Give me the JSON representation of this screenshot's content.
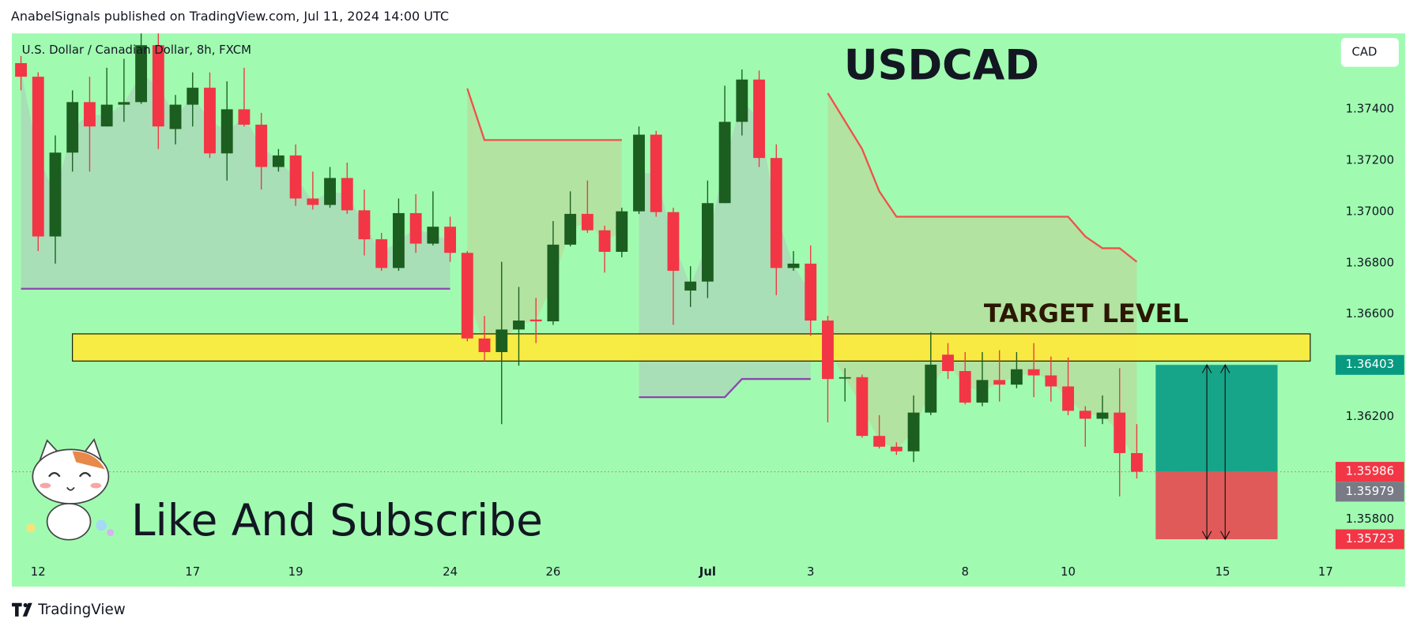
{
  "header": "AnabelSignals published on TradingView.com, Jul 11, 2024 14:00 UTC",
  "footer": "TradingView",
  "chart_data": {
    "type": "candlestick",
    "title": "USDCAD",
    "subtitle": "U.S. Dollar / Canadian Dollar, 8h, FXCM",
    "currency": "CAD",
    "annotations": [
      "TARGET LEVEL",
      "Like And Subscribe"
    ],
    "x": [
      -1,
      0,
      1,
      2,
      3,
      4,
      5,
      6,
      7,
      8,
      9,
      10,
      11,
      12,
      13,
      14,
      15,
      16,
      17,
      18,
      19,
      20,
      21,
      22,
      23,
      24,
      25,
      26,
      27,
      28,
      29,
      30,
      31,
      32,
      33,
      34,
      35,
      36,
      37,
      38,
      39,
      40,
      41,
      42,
      43,
      44,
      45,
      46,
      47,
      48,
      49,
      50,
      51,
      52,
      53,
      54,
      55,
      56,
      57,
      58,
      59,
      60,
      61,
      62,
      63,
      64
    ],
    "open": [
      1.3758,
      1.37527,
      1.36904,
      1.37231,
      1.37428,
      1.37333,
      1.37418,
      1.37428,
      1.3765,
      1.37323,
      1.37418,
      1.37484,
      1.37228,
      1.374,
      1.3734,
      1.37175,
      1.3722,
      1.37052,
      1.37027,
      1.37132,
      1.37006,
      1.36893,
      1.36781,
      1.36995,
      1.36876,
      1.36942,
      1.3684,
      1.36506,
      1.36453,
      1.36541,
      1.3658,
      1.36573,
      1.36872,
      1.36992,
      1.36928,
      1.36844,
      1.37002,
      1.37301,
      1.36999,
      1.36693,
      1.36728,
      1.37034,
      1.37351,
      1.37516,
      1.3721,
      1.36781,
      1.36798,
      1.36576,
      1.36351,
      1.36355,
      1.36126,
      1.36084,
      1.36066,
      1.36217,
      1.36443,
      1.36379,
      1.36256,
      1.36344,
      1.36326,
      1.36386,
      1.36362,
      1.36319,
      1.36224,
      1.36193,
      1.36217,
      1.36059
    ],
    "high": [
      1.37608,
      1.37544,
      1.37298,
      1.37474,
      1.37527,
      1.37562,
      1.37597,
      1.37696,
      1.37696,
      1.37456,
      1.37544,
      1.37544,
      1.37509,
      1.37562,
      1.37386,
      1.37245,
      1.37263,
      1.37157,
      1.37175,
      1.37192,
      1.37087,
      1.36918,
      1.37052,
      1.37069,
      1.3708,
      1.36981,
      1.36847,
      1.36594,
      1.36805,
      1.36707,
      1.36664,
      1.36964,
      1.3708,
      1.37122,
      1.36946,
      1.37016,
      1.37333,
      1.37316,
      1.37016,
      1.36788,
      1.37122,
      1.37492,
      1.37555,
      1.37551,
      1.37263,
      1.36847,
      1.36869,
      1.36594,
      1.3639,
      1.36365,
      1.36207,
      1.36101,
      1.36284,
      1.36531,
      1.36488,
      1.36453,
      1.36453,
      1.3646,
      1.36453,
      1.36488,
      1.36436,
      1.36432,
      1.36242,
      1.36284,
      1.3639,
      1.36172
    ],
    "low": [
      1.37474,
      1.36847,
      1.36798,
      1.37157,
      1.37157,
      1.37333,
      1.37351,
      1.37421,
      1.37245,
      1.37263,
      1.37333,
      1.3721,
      1.37122,
      1.37333,
      1.37087,
      1.37157,
      1.37023,
      1.37009,
      1.37016,
      1.36992,
      1.3683,
      1.3677,
      1.3677,
      1.3684,
      1.36869,
      1.36805,
      1.36495,
      1.36418,
      1.36172,
      1.364,
      1.36488,
      1.36559,
      1.36865,
      1.36918,
      1.36763,
      1.36823,
      1.36992,
      1.36981,
      1.36559,
      1.36629,
      1.36664,
      1.37034,
      1.37298,
      1.37175,
      1.36675,
      1.3677,
      1.36517,
      1.36179,
      1.3626,
      1.36119,
      1.36077,
      1.36052,
      1.36024,
      1.36207,
      1.36348,
      1.36249,
      1.36242,
      1.3626,
      1.36312,
      1.36277,
      1.3626,
      1.36207,
      1.36084,
      1.36172,
      1.3589,
      1.3596
    ],
    "close": [
      1.37527,
      1.36904,
      1.37231,
      1.37428,
      1.37333,
      1.37418,
      1.37428,
      1.3765,
      1.37333,
      1.37418,
      1.37484,
      1.37228,
      1.374,
      1.3734,
      1.37175,
      1.3722,
      1.37052,
      1.37027,
      1.37132,
      1.37006,
      1.36893,
      1.36781,
      1.36995,
      1.36876,
      1.36942,
      1.3684,
      1.36506,
      1.36453,
      1.36541,
      1.36576,
      1.36573,
      1.36872,
      1.36992,
      1.36928,
      1.36844,
      1.37002,
      1.37301,
      1.36999,
      1.3677,
      1.36728,
      1.37034,
      1.37351,
      1.37516,
      1.3721,
      1.36781,
      1.36798,
      1.36576,
      1.36348,
      1.36355,
      1.36126,
      1.36084,
      1.36066,
      1.36217,
      1.36404,
      1.36379,
      1.36256,
      1.36344,
      1.36326,
      1.36386,
      1.36362,
      1.36319,
      1.36224,
      1.36193,
      1.36217,
      1.36059,
      1.35986
    ],
    "up_color": "#1b5e20",
    "down_color": "#f23645",
    "series": [
      {
        "color": "#8e44ad",
        "fill": "#a9d9b8",
        "values": [
          1.367,
          1.367,
          1.367,
          1.367,
          1.367,
          1.367,
          1.367,
          1.367,
          1.367,
          1.367,
          1.367,
          1.367,
          1.367,
          1.367,
          1.367,
          1.367,
          1.367,
          1.367,
          1.367,
          1.367,
          1.367,
          1.367,
          1.367,
          1.367,
          1.367,
          1.367,
          null,
          null,
          null,
          null,
          null,
          null,
          null,
          null,
          null,
          null,
          null,
          null,
          null,
          null,
          null,
          null,
          null,
          null,
          null,
          null,
          null,
          null,
          null,
          null,
          null,
          null,
          null,
          null,
          null,
          null,
          null,
          null,
          null,
          null,
          null,
          null,
          null,
          null,
          null,
          null
        ]
      },
      {
        "color": "#f0504a",
        "fill": "#b5de9f",
        "values": [
          null,
          null,
          null,
          null,
          null,
          null,
          null,
          null,
          null,
          null,
          null,
          null,
          null,
          null,
          null,
          null,
          null,
          null,
          null,
          null,
          null,
          null,
          null,
          null,
          null,
          null,
          1.37481,
          1.3728,
          1.3728,
          1.3728,
          1.3728,
          1.3728,
          1.3728,
          1.3728,
          1.3728,
          1.3728,
          null,
          null,
          null,
          null,
          null,
          null,
          null,
          null,
          null,
          null,
          null,
          null,
          null,
          null,
          null,
          null,
          null,
          null,
          null,
          null,
          null,
          null,
          null,
          null,
          null,
          null,
          null,
          null,
          null,
          null
        ]
      },
      {
        "color": "#8e44ad",
        "fill": "#a9d9b8",
        "values": [
          null,
          null,
          null,
          null,
          null,
          null,
          null,
          null,
          null,
          null,
          null,
          null,
          null,
          null,
          null,
          null,
          null,
          null,
          null,
          null,
          null,
          null,
          null,
          null,
          null,
          null,
          null,
          null,
          null,
          null,
          null,
          null,
          null,
          null,
          null,
          null,
          1.36277,
          1.36277,
          1.36277,
          1.36277,
          1.36277,
          1.36277,
          1.36348,
          1.36348,
          1.36348,
          1.36348,
          1.36348,
          null,
          null,
          null,
          null,
          null,
          null,
          null,
          null,
          null,
          null,
          null,
          null,
          null,
          null,
          null,
          null,
          null,
          null,
          null
        ]
      },
      {
        "color": "#f0504a",
        "fill": "#b5de9f",
        "values": [
          null,
          null,
          null,
          null,
          null,
          null,
          null,
          null,
          null,
          null,
          null,
          null,
          null,
          null,
          null,
          null,
          null,
          null,
          null,
          null,
          null,
          null,
          null,
          null,
          null,
          null,
          null,
          null,
          null,
          null,
          null,
          null,
          null,
          null,
          null,
          null,
          null,
          null,
          null,
          null,
          null,
          null,
          null,
          null,
          null,
          null,
          null,
          1.37463,
          1.37354,
          1.37245,
          1.3708,
          1.36981,
          1.36981,
          1.36981,
          1.36981,
          1.36981,
          1.36981,
          1.36981,
          1.36981,
          1.36981,
          1.36981,
          1.36981,
          1.36904,
          1.36858,
          1.36858,
          1.36805
        ]
      }
    ],
    "zone": {
      "top": 1.36524,
      "bottom": 1.36418,
      "color": "#ffeb3b"
    },
    "position": {
      "entry": 1.35986,
      "target": 1.36403,
      "stop": 1.35723,
      "x": [
        65.1,
        72.2
      ],
      "profit_color": "#17a589",
      "loss_color": "#e05a5a"
    },
    "price_labels": [
      {
        "value": 1.36403,
        "color": "#089981"
      },
      {
        "value": 1.35986,
        "color": "#f23645"
      },
      {
        "value": 1.35979,
        "color": "#787b86"
      },
      {
        "value": 1.35723,
        "color": "#f23645"
      }
    ],
    "xlim": [
      -1.53,
      75.42
    ],
    "xticks": [
      {
        "value": 0,
        "label": "12"
      },
      {
        "value": 9,
        "label": "17"
      },
      {
        "value": 15,
        "label": "19"
      },
      {
        "value": 24,
        "label": "24"
      },
      {
        "value": 30,
        "label": "26"
      },
      {
        "value": 39,
        "label": "Jul"
      },
      {
        "value": 45,
        "label": "3"
      },
      {
        "value": 54,
        "label": "8"
      },
      {
        "value": 60,
        "label": "10"
      },
      {
        "value": 69,
        "label": "15"
      },
      {
        "value": 75,
        "label": "17"
      }
    ],
    "ylim": [
      1.35538,
      1.37696
    ],
    "yticks": [
      {
        "value": 1.374,
        "label": "1.37400"
      },
      {
        "value": 1.372,
        "label": "1.37200"
      },
      {
        "value": 1.37,
        "label": "1.37000"
      },
      {
        "value": 1.368,
        "label": "1.36800"
      },
      {
        "value": 1.366,
        "label": "1.36600"
      },
      {
        "value": 1.362,
        "label": "1.36200"
      },
      {
        "value": 1.358,
        "label": "1.35800"
      }
    ],
    "grid": false,
    "background": "#a0fbb1"
  }
}
